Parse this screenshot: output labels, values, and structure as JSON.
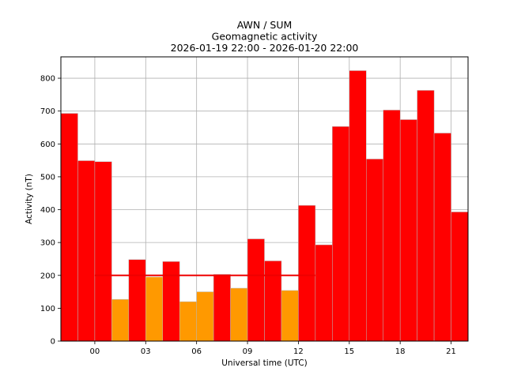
{
  "chart_data": {
    "type": "bar",
    "title_lines": [
      "AWN / SUM",
      "Geomagnetic activity",
      "2026-01-19 22:00 - 2026-01-20 22:00"
    ],
    "xlabel": "Universal time (UTC)",
    "ylabel": "Activity (nT)",
    "x_tick_labels": [
      "00",
      "03",
      "06",
      "09",
      "12",
      "15",
      "18",
      "21"
    ],
    "x_tick_hours": [
      0,
      3,
      6,
      9,
      12,
      15,
      18,
      21
    ],
    "y_ticks": [
      0,
      100,
      200,
      300,
      400,
      500,
      600,
      700,
      800
    ],
    "ylim": [
      0,
      865
    ],
    "xlim_hours": [
      -2,
      22
    ],
    "grid": true,
    "threshold": 200,
    "colors": {
      "above_threshold": "#ff0000",
      "below_threshold": "#ff9900",
      "threshold_line": "#ee0000",
      "grid": "#b0b0b0",
      "bar_edge": "#b8b8b8"
    },
    "bar_start_hours": [
      -2,
      -1,
      0,
      1,
      2,
      3,
      4,
      5,
      6,
      7,
      8,
      9,
      10,
      11,
      12,
      13,
      14,
      15,
      16,
      17,
      18,
      19,
      20,
      21
    ],
    "values": [
      693,
      549,
      546,
      127,
      248,
      195,
      242,
      120,
      150,
      203,
      161,
      311,
      244,
      154,
      413,
      293,
      653,
      823,
      554,
      703,
      674,
      763,
      633,
      393
    ]
  }
}
